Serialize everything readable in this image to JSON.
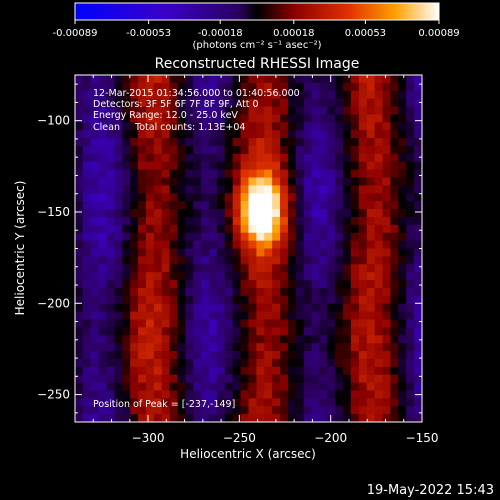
{
  "chart_data": {
    "type": "heatmap",
    "title": "Reconstructed RHESSI Image",
    "xlabel": "Heliocentric X (arcsec)",
    "ylabel": "Heliocentric Y (arcsec)",
    "xlim": [
      -340,
      -150
    ],
    "ylim": [
      -265,
      -75
    ],
    "xticks": [
      -300,
      -250,
      -200,
      -150
    ],
    "yticks": [
      -100,
      -150,
      -200,
      -250
    ],
    "colorbar": {
      "range": [
        -0.00089,
        0.00089
      ],
      "tick_values": [
        -0.00089,
        -0.00053,
        -0.00018,
        0.00018,
        0.00053,
        0.00089
      ],
      "tick_labels": [
        "-0.00089",
        "-0.00053",
        "-0.00018",
        "0.00018",
        "0.00053",
        "0.00089"
      ],
      "units_label": "(photons cm⁻² s⁻¹ asec⁻²)"
    },
    "info_lines": [
      "12-Mar-2015 01:34:56.000 to 01:40:56.000",
      "Detectors: 3F 5F 6F 7F 8F 9F, Att 0",
      "Energy Range: 12.0 - 25.0 keV",
      "Clean     Total counts: 1.13E+04"
    ],
    "peak_label": "Position of Peak = [-237,-149]",
    "peak": {
      "x": -237,
      "y": -149
    }
  },
  "footer": {
    "timestamp": "19-May-2022 15:43"
  }
}
